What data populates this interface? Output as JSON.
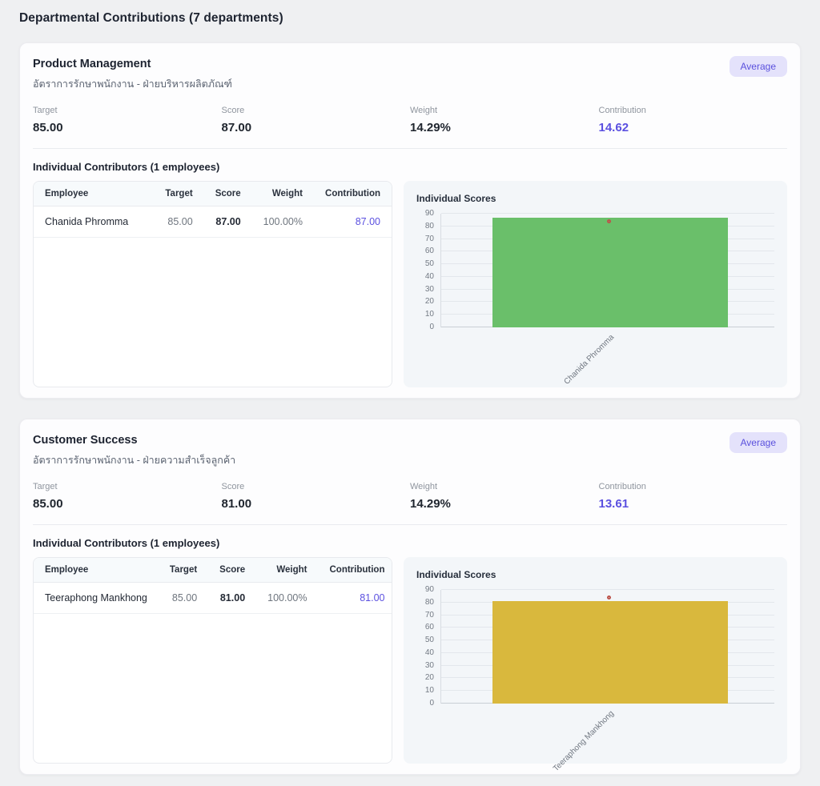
{
  "page": {
    "title": "Departmental Contributions (7 departments)"
  },
  "colors": {
    "accent": "#5b50e0",
    "badge_bg": "#e4e2fb",
    "bar_green": "#6abf6a",
    "bar_gold": "#d9b83d",
    "target_marker": "#bc544b",
    "chart_panel_bg": "#f3f6f9",
    "page_bg": "#eff0f2"
  },
  "stat_labels": {
    "target": "Target",
    "score": "Score",
    "weight": "Weight",
    "contribution": "Contribution"
  },
  "table_headers": {
    "employee": "Employee",
    "target": "Target",
    "score": "Score",
    "weight": "Weight",
    "contribution": "Contribution"
  },
  "departments": [
    {
      "name": "Product Management",
      "subtitle": "อัตราการรักษาพนักงาน - ฝ่ายบริหารผลิตภัณฑ์",
      "badge": "Average",
      "target": "85.00",
      "score": "87.00",
      "weight": "14.29%",
      "contribution": "14.62",
      "contributors_heading": "Individual Contributors (1 employees)",
      "table": {
        "rows": [
          {
            "employee": "Chanida Phromma",
            "target": "85.00",
            "score": "87.00",
            "weight": "100.00%",
            "contribution": "87.00"
          }
        ]
      }
    },
    {
      "name": "Customer Success",
      "subtitle": "อัตราการรักษาพนักงาน - ฝ่ายความสำเร็จลูกค้า",
      "badge": "Average",
      "target": "85.00",
      "score": "81.00",
      "weight": "14.29%",
      "contribution": "13.61",
      "contributors_heading": "Individual Contributors (1 employees)",
      "table": {
        "rows": [
          {
            "employee": "Teeraphong Mankhong",
            "target": "85.00",
            "score": "81.00",
            "weight": "100.00%",
            "contribution": "81.00"
          }
        ]
      }
    }
  ],
  "chart_data": [
    {
      "type": "bar",
      "title": "Individual Scores",
      "categories": [
        "Chanida Phromma"
      ],
      "series": [
        {
          "name": "Score",
          "values": [
            87
          ],
          "color": "#6abf6a"
        },
        {
          "name": "Target",
          "values": [
            85
          ],
          "color": "#bc544b",
          "marker": "circle-outline"
        }
      ],
      "ylim": [
        0,
        90
      ],
      "ytick_step": 10,
      "grid": true,
      "legend": false,
      "xlabel": "",
      "ylabel": ""
    },
    {
      "type": "bar",
      "title": "Individual Scores",
      "categories": [
        "Teeraphong Mankhong"
      ],
      "series": [
        {
          "name": "Score",
          "values": [
            81
          ],
          "color": "#d9b83d"
        },
        {
          "name": "Target",
          "values": [
            85
          ],
          "color": "#bc544b",
          "marker": "circle-outline"
        }
      ],
      "ylim": [
        0,
        90
      ],
      "ytick_step": 10,
      "grid": true,
      "legend": false,
      "xlabel": "",
      "ylabel": ""
    }
  ]
}
